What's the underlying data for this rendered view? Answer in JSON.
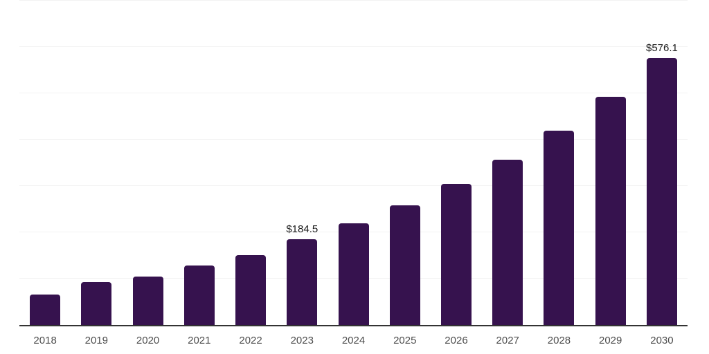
{
  "chart_data": {
    "type": "bar",
    "title": "",
    "xlabel": "",
    "ylabel": "",
    "categories": [
      "2018",
      "2019",
      "2020",
      "2021",
      "2022",
      "2023",
      "2024",
      "2025",
      "2026",
      "2027",
      "2028",
      "2029",
      "2030"
    ],
    "values": [
      65,
      92,
      105,
      129,
      151,
      184.5,
      220,
      258,
      304,
      357,
      420,
      493,
      576.1
    ],
    "data_labels": [
      "",
      "",
      "",
      "",
      "",
      "$184.5",
      "",
      "",
      "",
      "",
      "",
      "",
      "$576.1"
    ],
    "ylim": [
      0,
      700
    ],
    "gridline_interval": 100,
    "grid": true,
    "legend": false,
    "bar_color": "#36124e",
    "gridline_color": "#f2f2f2",
    "axis_line_color": "#333333",
    "value_label_color": "#1a1a1a",
    "tick_label_color": "#4d4d4d"
  }
}
